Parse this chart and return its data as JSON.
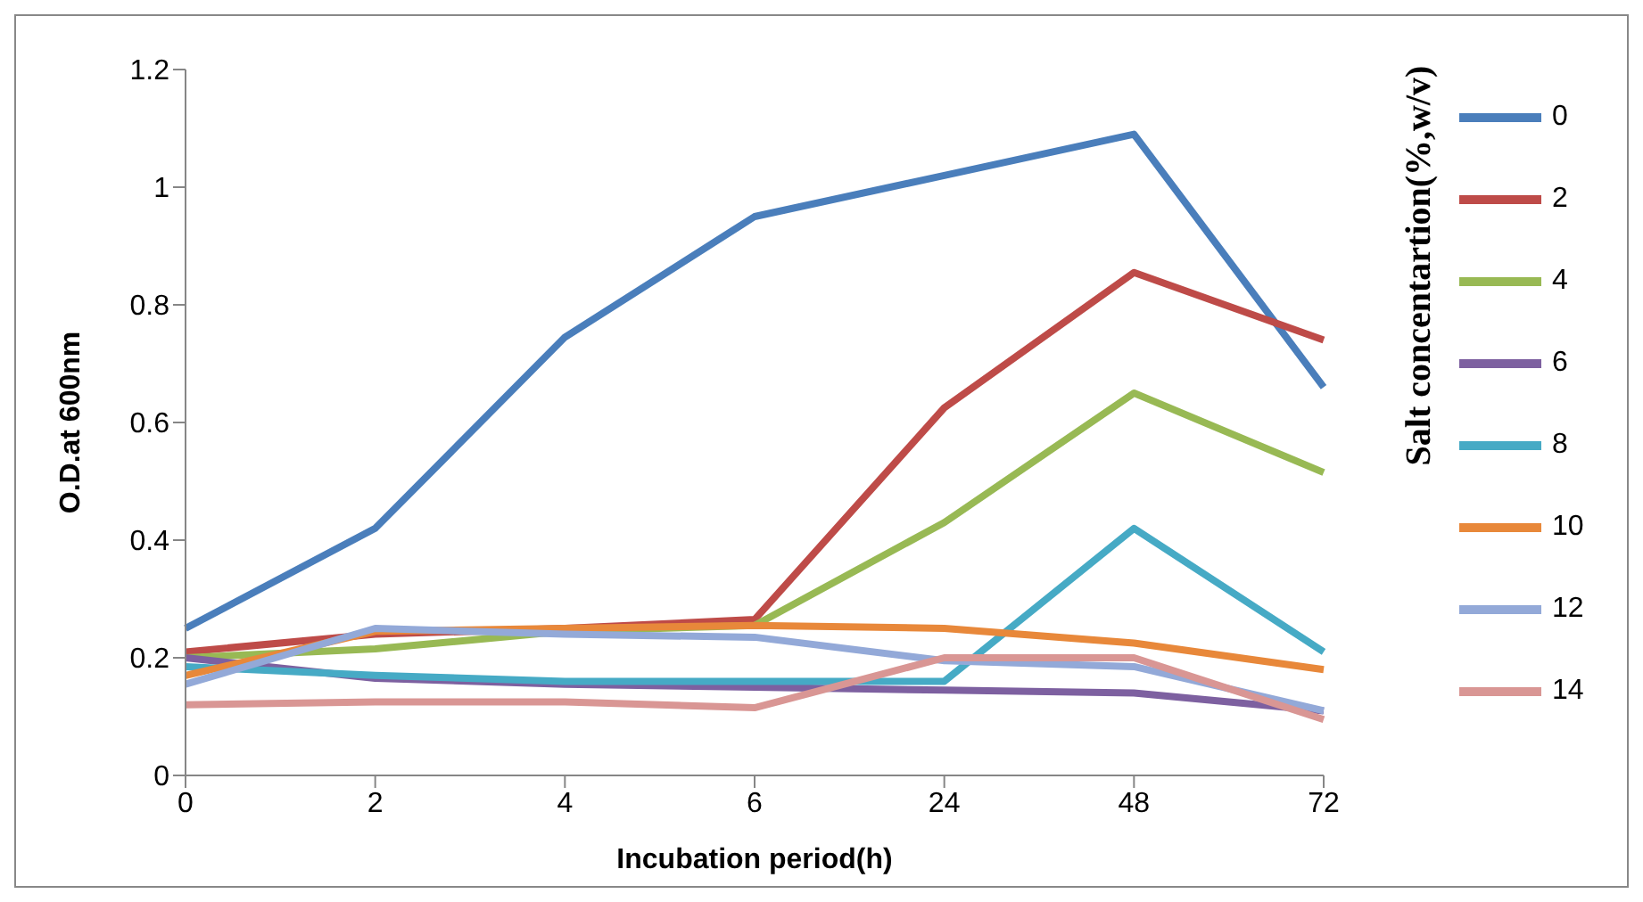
{
  "chart_data": {
    "type": "line",
    "xlabel": "Incubation period(h)",
    "ylabel": "O.D.at 600nm",
    "legend_title": "Salt concentartion(%,w/v)",
    "categories": [
      "0",
      "2",
      "4",
      "6",
      "24",
      "48",
      "72"
    ],
    "ylim": [
      0,
      1.2
    ],
    "yticks": [
      0,
      0.2,
      0.4,
      0.6,
      0.8,
      1,
      1.2
    ],
    "grid": false,
    "legend": "right",
    "marker": "none",
    "line_style": "solid",
    "series": [
      {
        "name": "0",
        "color": "#4a7ebb",
        "values": [
          0.25,
          0.42,
          0.745,
          0.95,
          1.02,
          1.09,
          0.66
        ]
      },
      {
        "name": "2",
        "color": "#be4b48",
        "values": [
          0.21,
          0.24,
          0.25,
          0.265,
          0.625,
          0.855,
          0.74
        ]
      },
      {
        "name": "4",
        "color": "#98b954",
        "values": [
          0.2,
          0.215,
          0.245,
          0.255,
          0.43,
          0.65,
          0.515
        ]
      },
      {
        "name": "6",
        "color": "#7d60a0",
        "values": [
          0.2,
          0.165,
          0.155,
          0.15,
          0.145,
          0.14,
          0.11
        ]
      },
      {
        "name": "8",
        "color": "#46aac5",
        "values": [
          0.185,
          0.17,
          0.16,
          0.16,
          0.16,
          0.42,
          0.21
        ]
      },
      {
        "name": "10",
        "color": "#e8883a",
        "values": [
          0.17,
          0.245,
          0.25,
          0.255,
          0.25,
          0.225,
          0.18
        ]
      },
      {
        "name": "12",
        "color": "#93a9d8",
        "values": [
          0.155,
          0.25,
          0.24,
          0.235,
          0.195,
          0.185,
          0.11
        ]
      },
      {
        "name": "14",
        "color": "#d99694",
        "values": [
          0.12,
          0.125,
          0.125,
          0.115,
          0.2,
          0.2,
          0.095
        ]
      }
    ]
  }
}
